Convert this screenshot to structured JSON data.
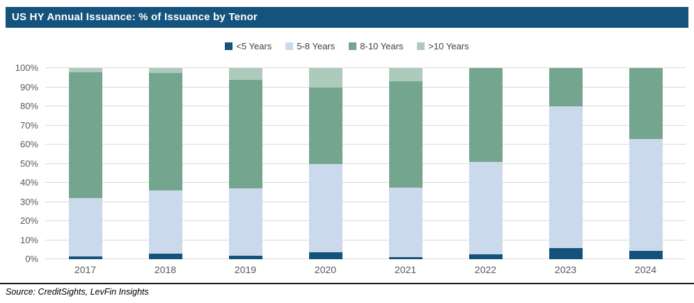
{
  "title_bar": {
    "title": "US HY Annual Issuance: % of Issuance by Tenor"
  },
  "source": {
    "text": "Source: CreditSights, LevFin Insights"
  },
  "colors": {
    "title_bar_bg": "#14537d",
    "title_text": "#ffffff",
    "gridline": "#d9d9d9",
    "axis_label": "#595959",
    "series_lt5": "#14527c",
    "series_5_8": "#cad9ec",
    "series_8_10": "#74a58f",
    "series_gt10": "#accbbb"
  },
  "chart_data": {
    "type": "bar",
    "stacked": true,
    "stacked_100_percent": true,
    "title": "US HY Annual Issuance: % of Issuance by Tenor",
    "xlabel": "",
    "ylabel": "",
    "ylim": [
      0,
      100
    ],
    "grid": true,
    "legend_position": "top",
    "categories": [
      "2017",
      "2018",
      "2019",
      "2020",
      "2021",
      "2022",
      "2023",
      "2024"
    ],
    "y_ticks": [
      "0%",
      "10%",
      "20%",
      "30%",
      "40%",
      "50%",
      "60%",
      "70%",
      "80%",
      "90%",
      "100%"
    ],
    "series": [
      {
        "name": "<5 Years",
        "color": "#14527c",
        "values": [
          1.5,
          3.0,
          2.0,
          3.5,
          1.0,
          2.5,
          6.0,
          4.5
        ]
      },
      {
        "name": "5-8 Years",
        "color": "#cad9ec",
        "values": [
          30.5,
          33.0,
          35.0,
          46.5,
          36.5,
          48.5,
          74.0,
          58.5
        ]
      },
      {
        "name": "8-10 Years",
        "color": "#74a58f",
        "values": [
          66.0,
          61.5,
          57.0,
          40.0,
          55.5,
          49.0,
          20.0,
          37.0
        ]
      },
      {
        "name": ">10 Years",
        "color": "#accbbb",
        "values": [
          2.0,
          2.5,
          6.0,
          10.0,
          7.0,
          0.0,
          0.0,
          0.0
        ]
      }
    ]
  }
}
